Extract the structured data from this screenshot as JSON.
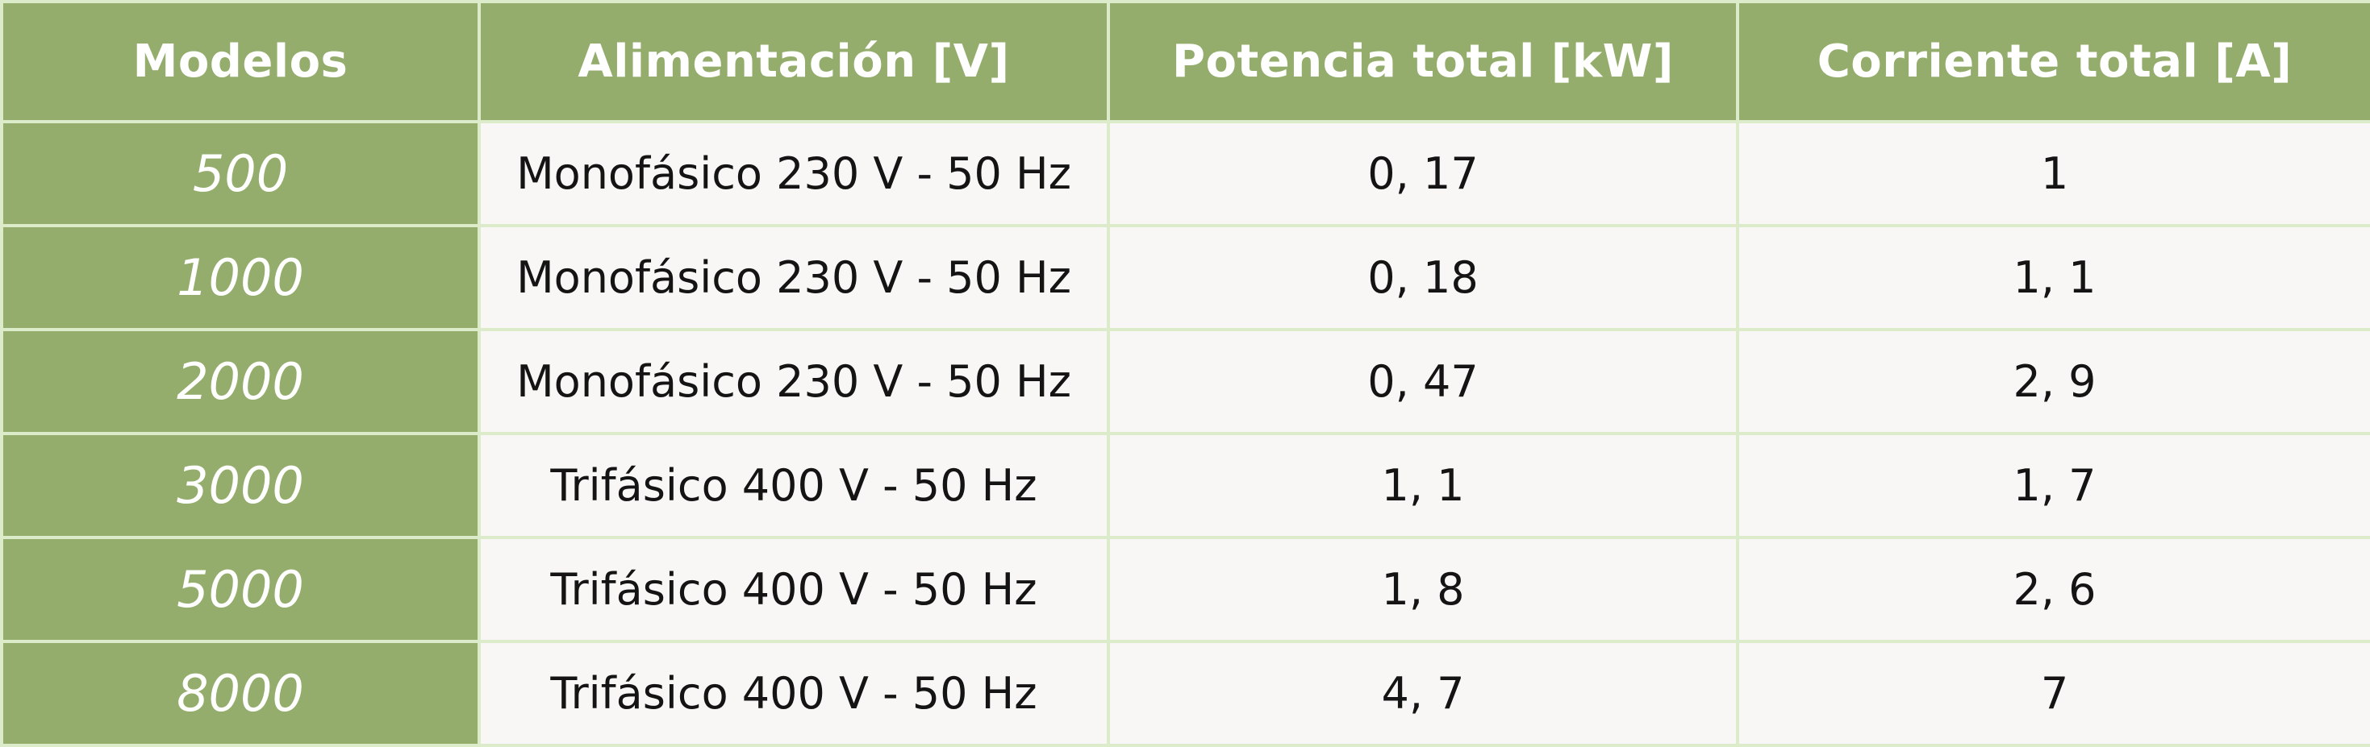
{
  "table": {
    "headers": [
      "Modelos",
      "Alimentación [V]",
      "Potencia total [kW]",
      "Corriente total [A]"
    ],
    "rows": [
      {
        "model": "500",
        "supply": "Monofásico 230 V - 50 Hz",
        "power": "0, 17",
        "current": "1"
      },
      {
        "model": "1000",
        "supply": "Monofásico 230 V - 50 Hz",
        "power": "0, 18",
        "current": "1, 1"
      },
      {
        "model": "2000",
        "supply": "Monofásico 230 V - 50 Hz",
        "power": "0, 47",
        "current": "2, 9"
      },
      {
        "model": "3000",
        "supply": "Trifásico 400 V - 50 Hz",
        "power": "1, 1",
        "current": "1, 7"
      },
      {
        "model": "5000",
        "supply": "Trifásico 400 V - 50 Hz",
        "power": "1, 8",
        "current": "2, 6"
      },
      {
        "model": "8000",
        "supply": "Trifásico 400 V - 50 Hz",
        "power": "4, 7",
        "current": "7"
      }
    ]
  },
  "colors": {
    "header_bg": "#94ad6c",
    "header_text": "#ffffff",
    "cell_bg": "#f8f7f5",
    "cell_text": "#141414",
    "border": "#dcecca"
  }
}
